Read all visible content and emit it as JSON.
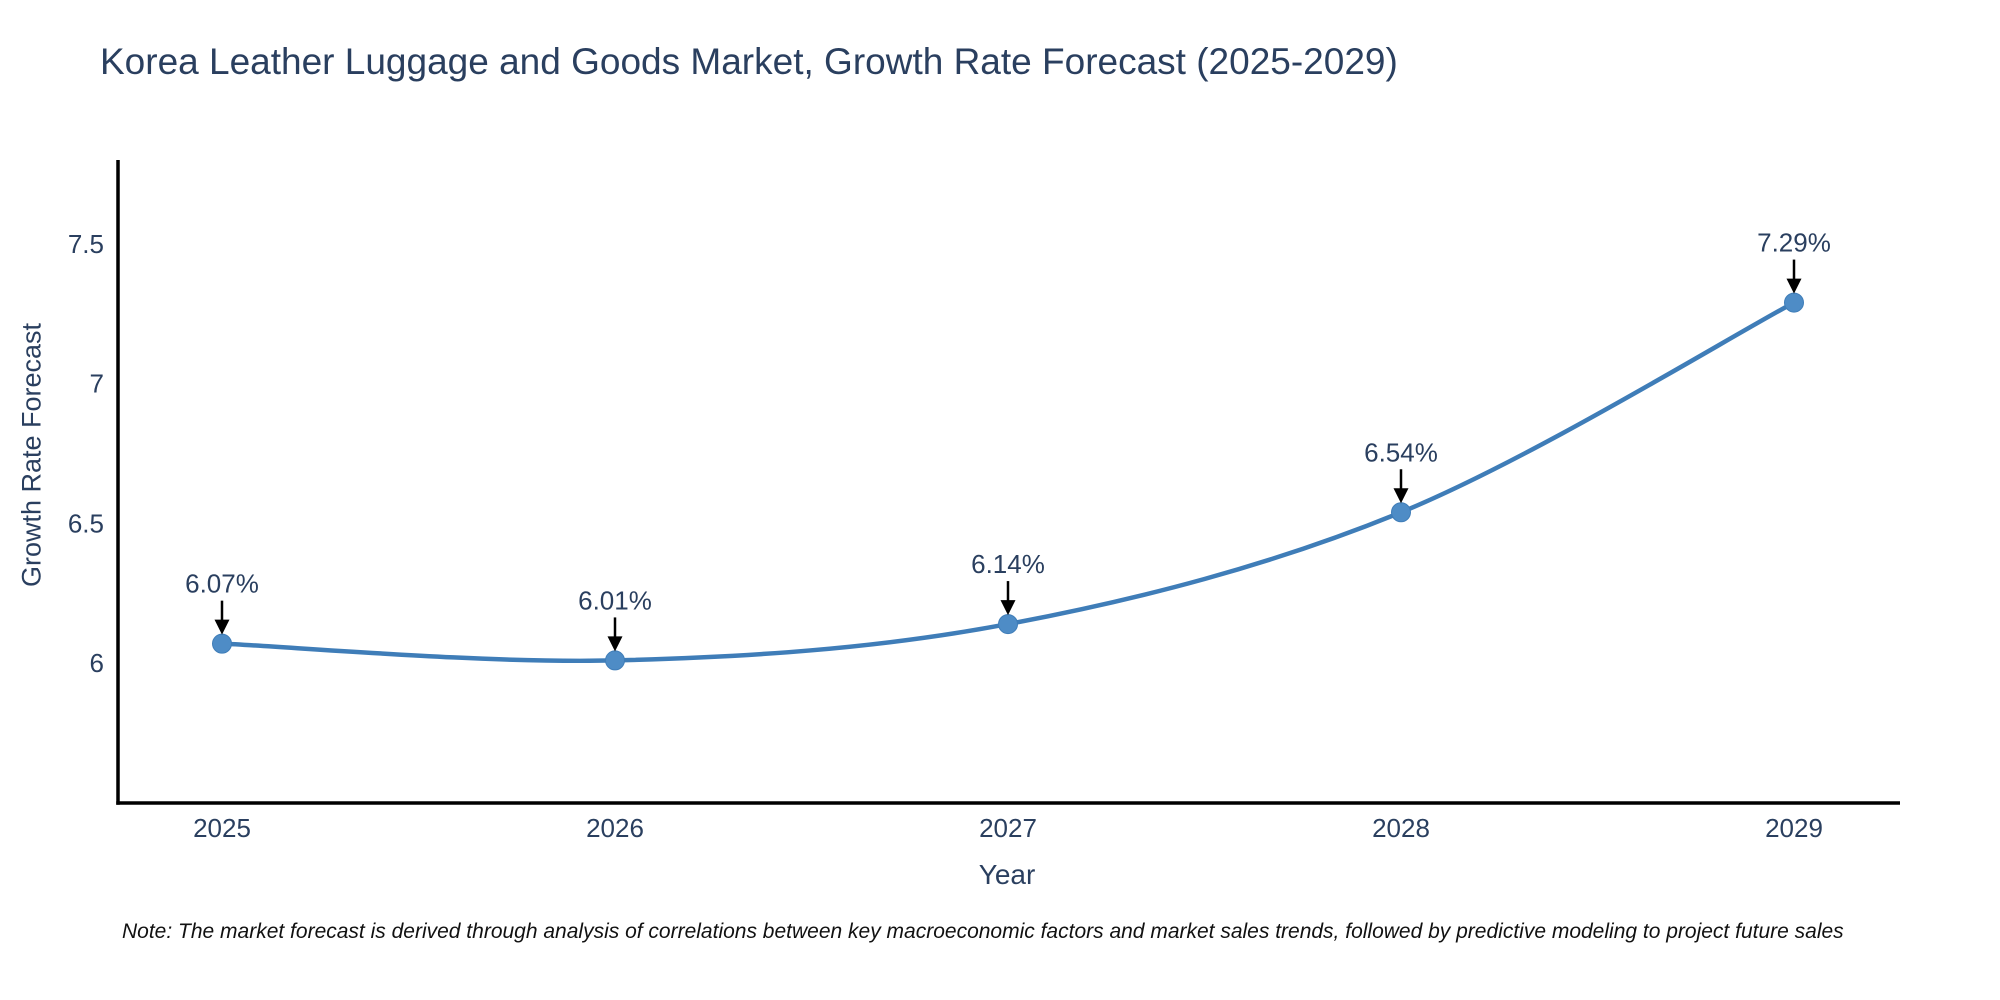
{
  "title": "Korea Leather Luggage and Goods Market, Growth Rate Forecast (2025-2029)",
  "note": "Note: The market forecast is derived through analysis of correlations between key macroeconomic factors and market sales trends, followed by predictive modeling to project future sales",
  "chart_data": {
    "type": "line",
    "title": "Korea Leather Luggage and Goods Market, Growth Rate Forecast (2025-2029)",
    "xlabel": "Year",
    "ylabel": "Growth Rate Forecast",
    "x": [
      "2025",
      "2026",
      "2027",
      "2028",
      "2029"
    ],
    "values": [
      6.07,
      6.01,
      6.14,
      6.54,
      7.29
    ],
    "annotations": [
      "6.07%",
      "6.01%",
      "6.14%",
      "6.54%",
      "7.29%"
    ],
    "y_ticks": [
      6,
      6.5,
      7,
      7.5
    ],
    "y_tick_labels": [
      "6",
      "6.5",
      "7",
      "7.5"
    ],
    "ylim": [
      5.5,
      7.8
    ],
    "grid": false,
    "legend": "none",
    "line_shape": "spline",
    "colors": {
      "line": "#3f7db8",
      "marker": "#4e8cc6",
      "axis": "#000000",
      "tick_text": "#2a3f5f",
      "annotation_text": "#2a3f5f",
      "arrow": "#000000"
    }
  }
}
